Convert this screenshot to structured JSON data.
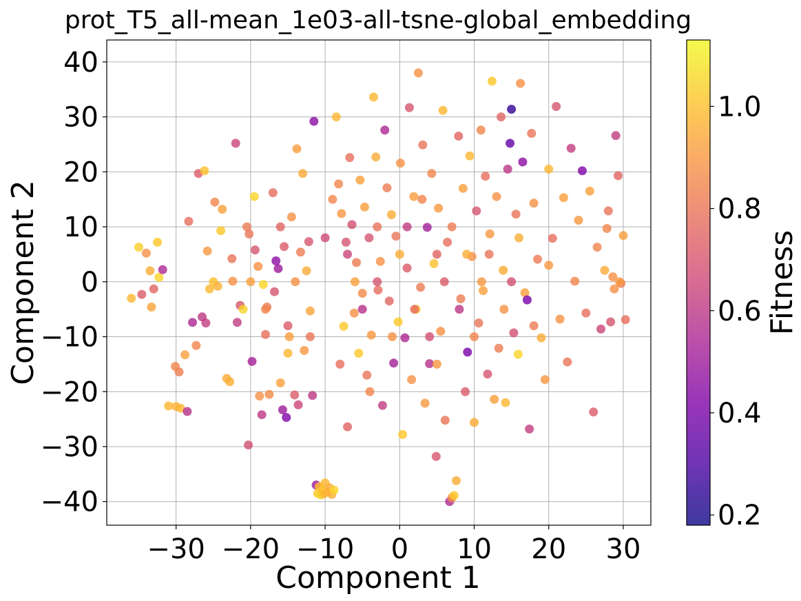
{
  "chart_data": {
    "type": "scatter",
    "title": "prot_T5_all-mean_1e03-all-tsne-global_embedding",
    "xlabel": "Component 1",
    "ylabel": "Component 2",
    "xlim": [
      -39.3,
      33.7
    ],
    "ylim": [
      -44.3,
      44.0
    ],
    "xticks": [
      -30,
      -20,
      -10,
      0,
      10,
      20,
      30
    ],
    "yticks": [
      -40,
      -30,
      -20,
      -10,
      0,
      10,
      20,
      30,
      40
    ],
    "xtick_labels": [
      "−30",
      "−20",
      "−10",
      "0",
      "10",
      "20",
      "30"
    ],
    "ytick_labels": [
      "−40",
      "−30",
      "−20",
      "−10",
      "0",
      "10",
      "20",
      "30",
      "40"
    ],
    "grid": true,
    "colorbar": {
      "label": "Fitness",
      "colormap": "plasma",
      "range": [
        0.18,
        1.13
      ],
      "ticks": [
        0.2,
        0.4,
        0.6,
        0.8,
        1.0
      ],
      "tick_labels": [
        "0.2",
        "0.4",
        "0.6",
        "0.8",
        "1.0"
      ]
    },
    "points": [
      [
        -36.0,
        -3.0,
        0.98
      ],
      [
        -35.0,
        6.3,
        1.03
      ],
      [
        -34.6,
        -2.3,
        0.72
      ],
      [
        -34.0,
        5.2,
        0.88
      ],
      [
        -33.5,
        2.0,
        0.95
      ],
      [
        -33.3,
        -4.6,
        0.93
      ],
      [
        -33.0,
        -1.3,
        0.75
      ],
      [
        -32.5,
        7.2,
        1.02
      ],
      [
        -32.3,
        0.8,
        1.05
      ],
      [
        -31.8,
        2.2,
        0.55
      ],
      [
        -31.0,
        -22.6,
        0.98
      ],
      [
        -30.1,
        -15.4,
        0.85
      ],
      [
        -30.0,
        -22.7,
        0.96
      ],
      [
        -29.6,
        -16.4,
        0.83
      ],
      [
        -29.4,
        -23.0,
        0.98
      ],
      [
        -28.8,
        -13.3,
        0.92
      ],
      [
        -28.5,
        -23.6,
        0.58
      ],
      [
        -28.3,
        11.0,
        0.78
      ],
      [
        -27.8,
        -7.4,
        0.55
      ],
      [
        -27.3,
        -11.6,
        0.85
      ],
      [
        -27.0,
        19.7,
        0.72
      ],
      [
        -26.5,
        -6.4,
        0.6
      ],
      [
        -26.2,
        20.2,
        1.0
      ],
      [
        -26.0,
        -7.5,
        0.62
      ],
      [
        -25.8,
        5.6,
        0.9
      ],
      [
        -25.5,
        -1.3,
        0.98
      ],
      [
        -25.0,
        0.0,
        1.0
      ],
      [
        -24.8,
        14.5,
        0.85
      ],
      [
        -24.4,
        -0.8,
        0.96
      ],
      [
        -24.0,
        9.3,
        1.02
      ],
      [
        -23.8,
        13.2,
        0.92
      ],
      [
        -23.2,
        -17.6,
        0.95
      ],
      [
        -22.8,
        -18.2,
        0.96
      ],
      [
        -22.5,
        4.2,
        0.8
      ],
      [
        -22.4,
        0.1,
        0.88
      ],
      [
        -22.0,
        25.2,
        0.65
      ],
      [
        -21.8,
        -7.4,
        0.62
      ],
      [
        -21.4,
        -4.3,
        0.7
      ],
      [
        -21.0,
        -5.0,
        1.05
      ],
      [
        -20.5,
        10.0,
        0.82
      ],
      [
        -20.3,
        -29.7,
        0.68
      ],
      [
        -20.2,
        8.7,
        0.8
      ],
      [
        -19.8,
        -14.5,
        0.52
      ],
      [
        -19.5,
        15.5,
        1.05
      ],
      [
        -19.4,
        5.8,
        0.7
      ],
      [
        -19.0,
        2.8,
        0.88
      ],
      [
        -18.8,
        -20.8,
        0.88
      ],
      [
        -18.5,
        -24.2,
        0.6
      ],
      [
        -18.3,
        -0.5,
        1.05
      ],
      [
        -18.0,
        -9.6,
        0.78
      ],
      [
        -17.8,
        -4.6,
        0.82
      ],
      [
        -17.5,
        -20.5,
        0.86
      ],
      [
        -17.0,
        16.2,
        0.78
      ],
      [
        -16.8,
        -1.8,
        0.7
      ],
      [
        -16.6,
        3.8,
        0.45
      ],
      [
        -16.3,
        2.4,
        0.5
      ],
      [
        -16.0,
        -18.4,
        0.92
      ],
      [
        -15.7,
        -23.3,
        0.5
      ],
      [
        -15.5,
        6.4,
        0.72
      ],
      [
        -15.2,
        -24.7,
        0.42
      ],
      [
        -15.0,
        -13.0,
        0.98
      ],
      [
        -14.8,
        -10.0,
        0.92
      ],
      [
        -14.5,
        11.8,
        0.88
      ],
      [
        -14.1,
        -20.6,
        0.72
      ],
      [
        -13.8,
        24.2,
        0.92
      ],
      [
        -13.6,
        -22.4,
        0.65
      ],
      [
        -13.3,
        5.4,
        0.82
      ],
      [
        -13.0,
        19.7,
        0.94
      ],
      [
        -12.8,
        -12.5,
        0.9
      ],
      [
        -12.5,
        2.0,
        0.95
      ],
      [
        -12.2,
        7.3,
        0.7
      ],
      [
        -12.0,
        -5.3,
        0.93
      ],
      [
        -11.7,
        -20.7,
        0.6
      ],
      [
        -11.5,
        29.2,
        0.45
      ],
      [
        -11.2,
        -37.0,
        0.5
      ],
      [
        -11.0,
        -38.5,
        1.02
      ],
      [
        -10.8,
        -37.3,
        1.0
      ],
      [
        -10.6,
        -38.8,
        1.05
      ],
      [
        -10.4,
        -37.8,
        1.0
      ],
      [
        -10.2,
        -38.6,
        0.98
      ],
      [
        -10.0,
        -36.6,
        0.98
      ],
      [
        -9.7,
        -38.3,
        0.97
      ],
      [
        -9.4,
        -37.5,
        0.95
      ],
      [
        -9.1,
        -38.7,
        0.95
      ],
      [
        -8.8,
        -37.9,
        1.05
      ],
      [
        -8.5,
        30.0,
        0.98
      ],
      [
        -8.2,
        17.8,
        0.85
      ],
      [
        -7.8,
        12.4,
        0.9
      ],
      [
        -7.5,
        -8.1,
        1.02
      ],
      [
        -7.2,
        7.2,
        0.7
      ],
      [
        -7.0,
        -26.4,
        0.75
      ],
      [
        -6.7,
        22.6,
        0.78
      ],
      [
        -6.4,
        10.4,
        0.68
      ],
      [
        -6.1,
        -5.7,
        0.88
      ],
      [
        -5.8,
        3.5,
        0.82
      ],
      [
        -5.5,
        -13.0,
        1.02
      ],
      [
        -5.3,
        18.5,
        0.92
      ],
      [
        -5.0,
        -2.1,
        0.86
      ],
      [
        -4.7,
        13.6,
        0.92
      ],
      [
        -4.4,
        -17.0,
        0.8
      ],
      [
        -4.1,
        8.0,
        0.7
      ],
      [
        -3.8,
        -9.7,
        0.9
      ],
      [
        -3.5,
        33.6,
        0.98
      ],
      [
        -3.2,
        22.7,
        0.95
      ],
      [
        -2.9,
        -1.5,
        0.78
      ],
      [
        -2.6,
        3.7,
        0.88
      ],
      [
        -2.3,
        -22.5,
        0.62
      ],
      [
        -2.0,
        27.6,
        0.55
      ],
      [
        -1.7,
        17.1,
        0.82
      ],
      [
        -1.4,
        -3.5,
        0.75
      ],
      [
        -1.1,
        12.2,
        0.95
      ],
      [
        -0.8,
        -14.8,
        0.52
      ],
      [
        -0.5,
        8.3,
        0.8
      ],
      [
        -0.2,
        -7.3,
        1.02
      ],
      [
        0.1,
        21.6,
        0.88
      ],
      [
        0.4,
        -27.8,
        1.02
      ],
      [
        0.7,
        -10.2,
        0.55
      ],
      [
        1.0,
        2.5,
        0.72
      ],
      [
        1.3,
        31.7,
        0.7
      ],
      [
        1.6,
        -17.8,
        0.88
      ],
      [
        1.9,
        15.5,
        0.92
      ],
      [
        2.2,
        -5.0,
        1.0
      ],
      [
        2.5,
        38.0,
        0.88
      ],
      [
        2.8,
        -1.0,
        0.82
      ],
      [
        3.1,
        24.9,
        0.8
      ],
      [
        3.4,
        -22.1,
        0.9
      ],
      [
        3.7,
        9.9,
        0.52
      ],
      [
        4.0,
        -14.9,
        0.58
      ],
      [
        4.3,
        19.7,
        0.85
      ],
      [
        4.6,
        3.3,
        1.0
      ],
      [
        4.9,
        -31.8,
        0.7
      ],
      [
        5.2,
        13.4,
        0.9
      ],
      [
        5.5,
        -9.0,
        0.88
      ],
      [
        5.8,
        31.2,
        0.98
      ],
      [
        6.1,
        -25.2,
        0.8
      ],
      [
        6.4,
        7.2,
        0.78
      ],
      [
        6.7,
        -40.0,
        0.55
      ],
      [
        7.0,
        -39.3,
        0.88
      ],
      [
        7.3,
        -38.9,
        1.02
      ],
      [
        7.6,
        -36.2,
        0.95
      ],
      [
        7.9,
        26.5,
        0.75
      ],
      [
        8.2,
        -3.1,
        0.82
      ],
      [
        8.5,
        17.0,
        0.92
      ],
      [
        8.8,
        -20.0,
        0.72
      ],
      [
        9.1,
        -12.8,
        0.4
      ],
      [
        9.4,
        22.9,
        0.98
      ],
      [
        9.7,
        4.6,
        0.88
      ],
      [
        10.0,
        -25.6,
        0.95
      ],
      [
        10.3,
        12.9,
        0.7
      ],
      [
        10.6,
        -7.5,
        0.8
      ],
      [
        10.9,
        27.6,
        0.85
      ],
      [
        11.2,
        -1.6,
        0.92
      ],
      [
        11.5,
        19.2,
        0.78
      ],
      [
        11.8,
        -16.8,
        0.7
      ],
      [
        12.1,
        8.7,
        0.9
      ],
      [
        12.4,
        36.5,
        1.02
      ],
      [
        12.7,
        -21.4,
        0.92
      ],
      [
        13.0,
        15.5,
        0.88
      ],
      [
        13.3,
        -12.1,
        0.82
      ],
      [
        13.6,
        30.0,
        0.75
      ],
      [
        13.9,
        2.1,
        0.95
      ],
      [
        14.2,
        -22.0,
        0.98
      ],
      [
        14.5,
        20.5,
        0.6
      ],
      [
        14.8,
        25.2,
        0.35
      ],
      [
        15.0,
        31.4,
        0.25
      ],
      [
        15.3,
        -9.3,
        0.68
      ],
      [
        15.6,
        12.3,
        0.8
      ],
      [
        15.9,
        -13.2,
        1.05
      ],
      [
        16.2,
        36.1,
        0.88
      ],
      [
        16.5,
        21.8,
        0.45
      ],
      [
        16.8,
        -2.0,
        0.92
      ],
      [
        17.1,
        -3.3,
        0.4
      ],
      [
        17.4,
        -26.8,
        0.62
      ],
      [
        17.7,
        27.0,
        0.8
      ],
      [
        18.0,
        14.3,
        0.88
      ],
      [
        18.5,
        4.1,
        0.82
      ],
      [
        19.0,
        -10.2,
        0.95
      ],
      [
        19.5,
        -17.8,
        0.9
      ],
      [
        20.0,
        20.5,
        0.98
      ],
      [
        20.5,
        7.9,
        0.78
      ],
      [
        21.0,
        31.9,
        0.7
      ],
      [
        21.5,
        -6.8,
        0.88
      ],
      [
        22.0,
        15.3,
        0.92
      ],
      [
        22.5,
        -14.6,
        0.8
      ],
      [
        23.0,
        24.3,
        0.62
      ],
      [
        23.5,
        0.1,
        0.85
      ],
      [
        24.0,
        11.2,
        0.9
      ],
      [
        24.5,
        20.2,
        0.42
      ],
      [
        25.0,
        -5.7,
        0.78
      ],
      [
        25.5,
        16.5,
        0.92
      ],
      [
        26.0,
        -23.7,
        0.72
      ],
      [
        26.5,
        6.3,
        0.85
      ],
      [
        27.0,
        -8.6,
        0.65
      ],
      [
        27.5,
        2.1,
        0.95
      ],
      [
        28.0,
        12.9,
        0.8
      ],
      [
        28.3,
        -7.3,
        0.7
      ],
      [
        28.6,
        0.9,
        0.88
      ],
      [
        29.0,
        26.6,
        0.62
      ],
      [
        29.3,
        19.3,
        0.75
      ],
      [
        29.7,
        -0.3,
        0.82
      ],
      [
        30.0,
        8.4,
        0.92
      ],
      [
        30.3,
        -6.9,
        0.78
      ],
      [
        29.5,
        0.0,
        0.9
      ],
      [
        28.8,
        -1.3,
        0.88
      ],
      [
        27.8,
        9.7,
        0.85
      ],
      [
        -9.0,
        15.0,
        0.85
      ],
      [
        -8.0,
        -15.0,
        0.78
      ],
      [
        -6.0,
        0.0,
        0.92
      ],
      [
        -4.0,
        -20.0,
        0.85
      ],
      [
        -3.0,
        10.0,
        0.8
      ],
      [
        -1.0,
        -10.0,
        0.88
      ],
      [
        0.0,
        5.0,
        0.95
      ],
      [
        2.0,
        -5.0,
        0.78
      ],
      [
        3.0,
        15.0,
        0.85
      ],
      [
        5.0,
        -15.0,
        0.9
      ],
      [
        6.0,
        0.0,
        0.72
      ],
      [
        7.0,
        10.0,
        0.82
      ],
      [
        9.0,
        5.0,
        0.95
      ],
      [
        10.0,
        -10.0,
        0.85
      ],
      [
        11.0,
        0.0,
        0.9
      ],
      [
        -12.0,
        -10.0,
        0.8
      ],
      [
        -14.0,
        0.0,
        0.88
      ],
      [
        -16.0,
        10.0,
        0.75
      ],
      [
        -18.0,
        -5.0,
        0.85
      ],
      [
        -20.0,
        0.0,
        0.92
      ],
      [
        12.0,
        5.0,
        0.8
      ],
      [
        14.0,
        -5.0,
        0.88
      ],
      [
        16.0,
        8.0,
        0.95
      ],
      [
        18.0,
        -8.0,
        0.82
      ],
      [
        20.0,
        3.0,
        0.9
      ],
      [
        -7.0,
        5.0,
        0.65
      ],
      [
        -5.0,
        -5.0,
        0.58
      ],
      [
        -3.0,
        0.0,
        0.7
      ],
      [
        1.0,
        10.0,
        0.62
      ],
      [
        4.0,
        -10.0,
        0.68
      ],
      [
        8.0,
        -5.0,
        0.6
      ],
      [
        -10.0,
        8.0,
        0.66
      ],
      [
        -15.0,
        -8.0,
        0.72
      ],
      [
        15.0,
        0.0,
        0.68
      ],
      [
        5.0,
        5.0,
        0.75
      ]
    ]
  }
}
